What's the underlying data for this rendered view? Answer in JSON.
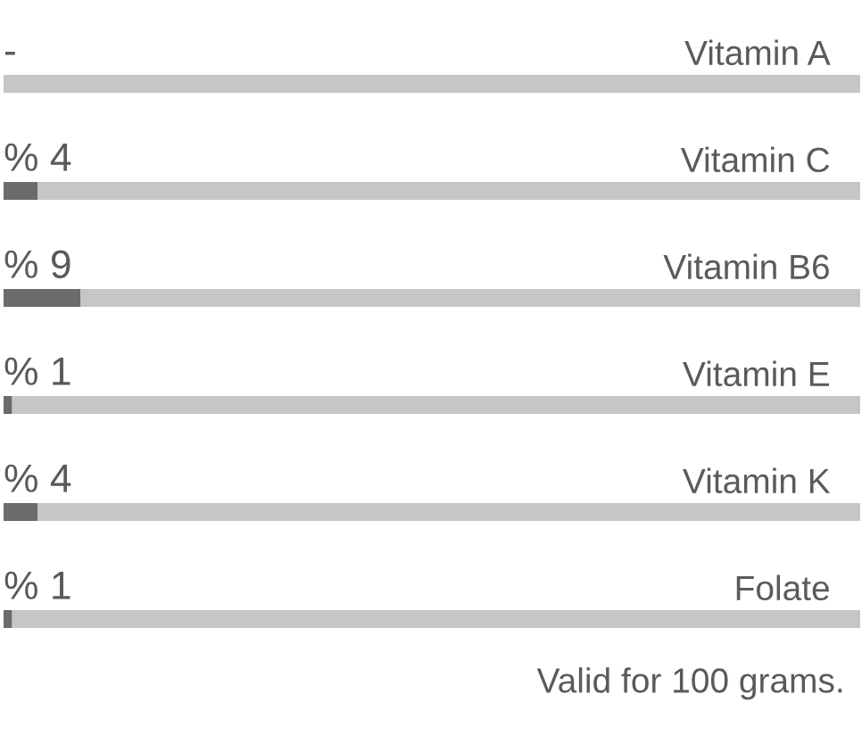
{
  "chart_data": {
    "type": "bar",
    "orientation": "horizontal",
    "stacked": true,
    "categories": [
      "Vitamin A",
      "Vitamin C",
      "Vitamin B6",
      "Vitamin E",
      "Vitamin K",
      "Folate"
    ],
    "xlim": [
      0,
      100
    ],
    "series": [
      {
        "color": "#6b6b6b",
        "values": [
          null,
          4,
          9,
          1,
          4,
          1
        ],
        "value_labels": [
          "-",
          "% 4",
          "% 9",
          "% 1",
          "% 4",
          "% 1"
        ]
      },
      {
        "color": "#c6c6c6",
        "values": [
          100,
          96,
          91,
          99,
          96,
          99
        ]
      }
    ],
    "annotations": [
      "Valid for 100 grams."
    ]
  }
}
